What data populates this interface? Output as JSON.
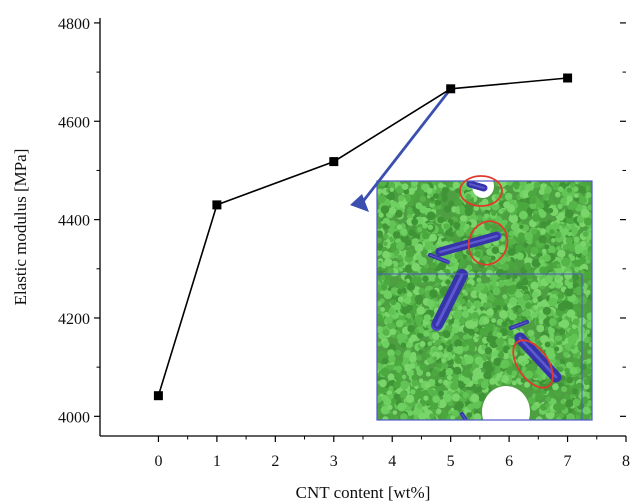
{
  "chart_data": {
    "type": "line",
    "title": "",
    "xlabel": "CNT content [wt%]",
    "ylabel": "Elastic modulus [MPa]",
    "xlim": [
      -1,
      8
    ],
    "ylim": [
      3960,
      4810
    ],
    "x_ticks": [
      0,
      1,
      2,
      3,
      4,
      5,
      6,
      7,
      8
    ],
    "y_ticks": [
      4000,
      4200,
      4400,
      4600,
      4800
    ],
    "grid": false,
    "series": [
      {
        "x": [
          0,
          1,
          3,
          5,
          7
        ],
        "y": [
          4042,
          4430,
          4518,
          4666,
          4688
        ],
        "color": "#000000",
        "marker": "square"
      }
    ],
    "annotations": [
      {
        "type": "arrow",
        "from_point": 3,
        "color": "#3a4fb0"
      },
      {
        "type": "inset-image",
        "depicts": "molecular model of polymer matrix with embedded CNTs",
        "matrix_color": "#56b548",
        "cnt_color": "#4a45c8",
        "highlight_color": "#e03a2f"
      }
    ]
  }
}
